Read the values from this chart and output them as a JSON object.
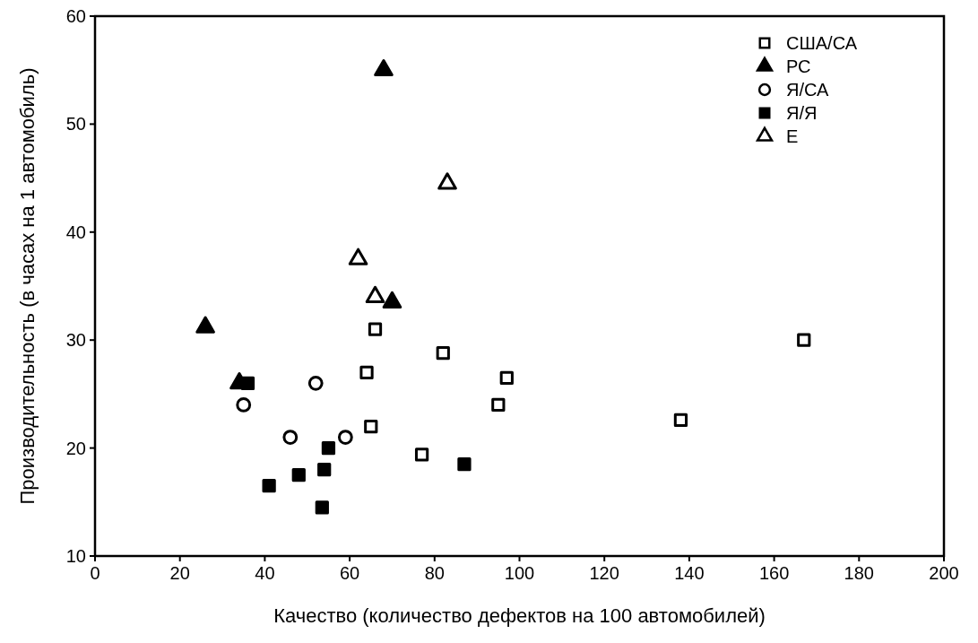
{
  "chart_data": {
    "type": "scatter",
    "xlabel": "Качество (количество дефектов на 100 автомобилей)",
    "ylabel": "Производительность (в часах на 1 автомобиль)",
    "xlim": [
      0,
      200
    ],
    "ylim": [
      10,
      60
    ],
    "xticks": [
      0,
      20,
      40,
      60,
      80,
      100,
      120,
      140,
      160,
      180,
      200
    ],
    "yticks": [
      10,
      20,
      30,
      40,
      50,
      60
    ],
    "grid": false,
    "legend": "top right",
    "series": [
      {
        "name": "США/СА",
        "color": "#000000",
        "marker": "square-open",
        "x": [
          66,
          64,
          82,
          65,
          77,
          97,
          95,
          138,
          167
        ],
        "values": [
          31,
          27,
          28.8,
          22,
          19.4,
          26.5,
          24,
          22.6,
          30
        ]
      },
      {
        "name": "РС",
        "color": "#000000",
        "marker": "triangle",
        "x": [
          68,
          26,
          34,
          70
        ],
        "values": [
          55,
          31.2,
          26,
          33.5
        ]
      },
      {
        "name": "Я/СА",
        "color": "#000000",
        "marker": "circle-open",
        "x": [
          35,
          52,
          46,
          59
        ],
        "values": [
          24,
          26,
          21,
          21
        ]
      },
      {
        "name": "Я/Я",
        "color": "#000000",
        "marker": "square",
        "x": [
          36,
          55,
          54,
          48,
          41,
          53.5,
          87
        ],
        "values": [
          26,
          20,
          18,
          17.5,
          16.5,
          14.5,
          18.5
        ]
      },
      {
        "name": "E",
        "color": "#000000",
        "marker": "triangle-open",
        "x": [
          83,
          62,
          66
        ],
        "values": [
          44.5,
          37.5,
          34
        ]
      }
    ]
  }
}
